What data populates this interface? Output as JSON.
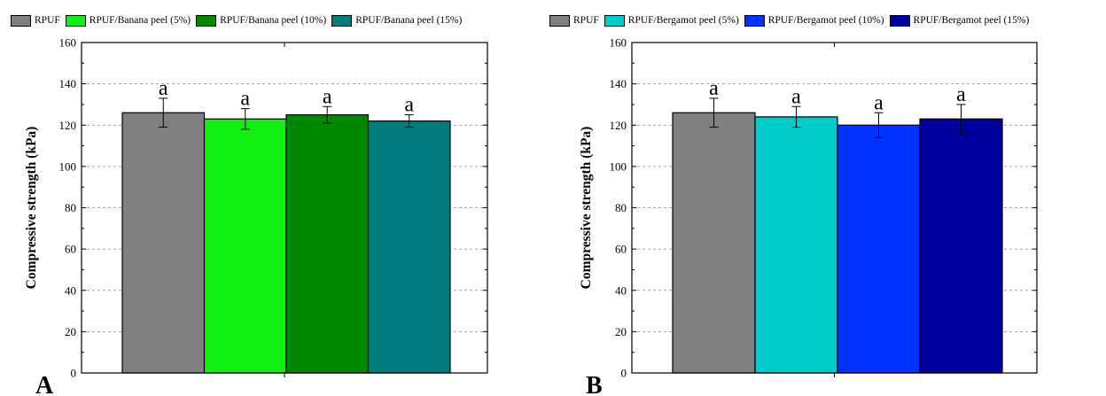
{
  "chart_data": [
    {
      "type": "bar",
      "panel_label": "A",
      "ylabel": "Compressive strength (kPa)",
      "ylim": [
        0,
        160
      ],
      "yticks": [
        0,
        20,
        40,
        60,
        80,
        100,
        120,
        140,
        160
      ],
      "grid": "dashed horizontal",
      "legend_position": "top",
      "legend": [
        "RPUF",
        "RPUF/Banana peel (5%)",
        "RPUF/Banana peel (10%)",
        "RPUF/Banana peel (15%)"
      ],
      "series": [
        {
          "name": "RPUF",
          "value": 126,
          "error": 7,
          "annotation": "a",
          "color": "#808080"
        },
        {
          "name": "RPUF/Banana peel (5%)",
          "value": 123,
          "error": 5,
          "annotation": "a",
          "color": "#11ee11"
        },
        {
          "name": "RPUF/Banana peel (10%)",
          "value": 125,
          "error": 4,
          "annotation": "a",
          "color": "#008800"
        },
        {
          "name": "RPUF/Banana peel (15%)",
          "value": 122,
          "error": 3,
          "annotation": "a",
          "color": "#007c7c"
        }
      ]
    },
    {
      "type": "bar",
      "panel_label": "B",
      "ylabel": "Compressive strength (kPa)",
      "ylim": [
        0,
        160
      ],
      "yticks": [
        0,
        20,
        40,
        60,
        80,
        100,
        120,
        140,
        160
      ],
      "grid": "dashed horizontal",
      "legend_position": "top",
      "legend": [
        "RPUF",
        "RPUF/Bergamot peel (5%)",
        "RPUF/Bergamot peel (10%)",
        "RPUF/Bergamot peel (15%)"
      ],
      "series": [
        {
          "name": "RPUF",
          "value": 126,
          "error": 7,
          "annotation": "a",
          "color": "#808080"
        },
        {
          "name": "RPUF/Bergamot peel (5%)",
          "value": 124,
          "error": 5,
          "annotation": "a",
          "color": "#00cccc"
        },
        {
          "name": "RPUF/Bergamot peel (10%)",
          "value": 120,
          "error": 6,
          "annotation": "a",
          "color": "#0033ff"
        },
        {
          "name": "RPUF/Bergamot peel (15%)",
          "value": 123,
          "error": 7,
          "annotation": "a",
          "color": "#0000a0"
        }
      ]
    }
  ]
}
